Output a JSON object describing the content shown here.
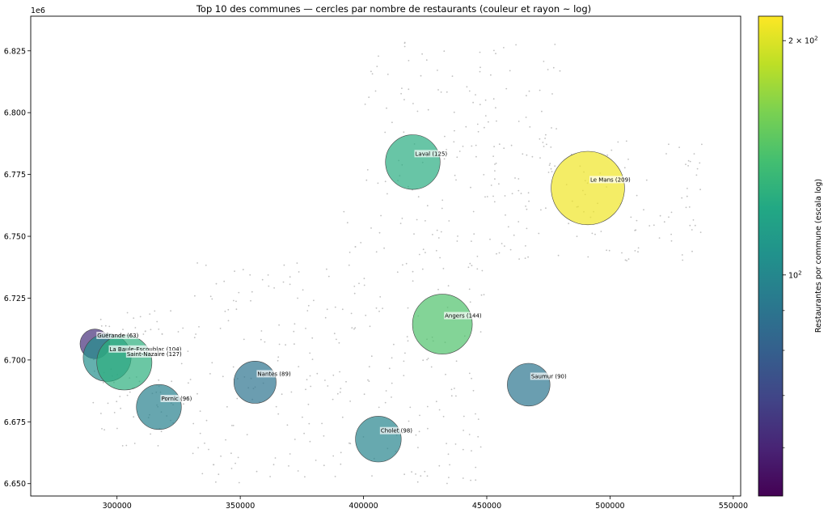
{
  "chart_data": {
    "type": "scatter",
    "title": "Top 10 des communes — cercles par nombre de restaurants (couleur et rayon ~ log)",
    "xlabel": "",
    "ylabel": "",
    "y_offset_label": "1e6",
    "xlim": [
      265000,
      553000
    ],
    "ylim": [
      6645000,
      6839000
    ],
    "xticks": [
      300000,
      350000,
      400000,
      450000,
      500000,
      550000
    ],
    "xtick_labels": [
      "300000",
      "350000",
      "400000",
      "450000",
      "500000",
      "550000"
    ],
    "yticks": [
      6.65,
      6.675,
      6.7,
      6.725,
      6.75,
      6.775,
      6.8,
      6.825
    ],
    "ytick_labels": [
      "6.650",
      "6.675",
      "6.700",
      "6.725",
      "6.750",
      "6.775",
      "6.800",
      "6.825"
    ],
    "grid": false,
    "colorbar": {
      "label": "Restaurantes por commune (escala log)",
      "scale": "log",
      "vmin": 52,
      "vmax": 215,
      "colormap": "viridis",
      "tick_labels": [
        "10^2",
        "2 × 10^2"
      ],
      "major_ticks": [
        100,
        200
      ],
      "minor_ticks": [
        60,
        70,
        80,
        90
      ]
    },
    "communes": [
      {
        "name": "Guérande",
        "count": 63,
        "x": 291000,
        "y": 6706500
      },
      {
        "name": "La Baule-Escoublac",
        "count": 104,
        "x": 296000,
        "y": 6701000
      },
      {
        "name": "Saint-Nazaire",
        "count": 127,
        "x": 303000,
        "y": 6699000
      },
      {
        "name": "Pornic",
        "count": 96,
        "x": 317000,
        "y": 6681000
      },
      {
        "name": "Nantes",
        "count": 89,
        "x": 356000,
        "y": 6691000
      },
      {
        "name": "Cholet",
        "count": 98,
        "x": 406000,
        "y": 6668000
      },
      {
        "name": "Angers",
        "count": 144,
        "x": 432000,
        "y": 6714500
      },
      {
        "name": "Saumur",
        "count": 90,
        "x": 467000,
        "y": 6690000
      },
      {
        "name": "Laval",
        "count": 125,
        "x": 420000,
        "y": 6780000
      },
      {
        "name": "Le Mans",
        "count": 209,
        "x": 491000,
        "y": 6769500
      }
    ],
    "background_points": {
      "color": "#bfbfbf",
      "description_count": 600
    }
  }
}
